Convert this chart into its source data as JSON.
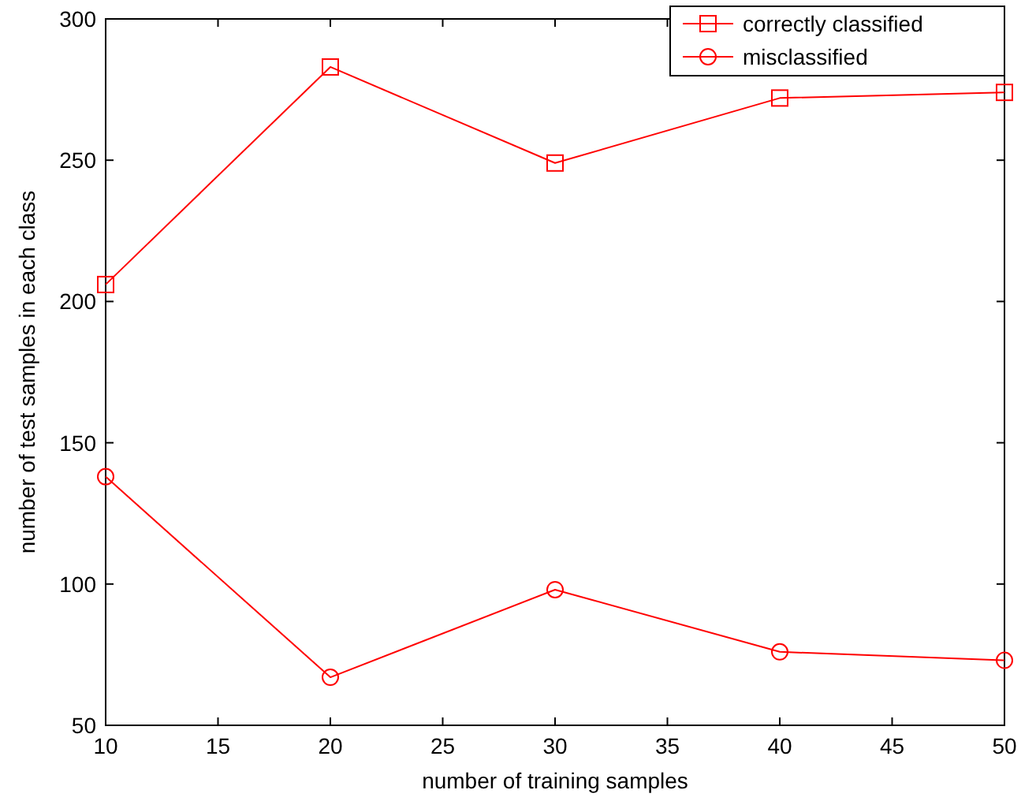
{
  "chart_data": {
    "type": "line",
    "xlabel": "number of training samples",
    "ylabel": "number of test samples in each class",
    "x": [
      10,
      20,
      30,
      40,
      50
    ],
    "series": [
      {
        "name": "correctly classified",
        "color": "#ff0000",
        "marker": "square",
        "values": [
          206,
          283,
          249,
          272,
          274
        ]
      },
      {
        "name": "misclassified",
        "color": "#ff0000",
        "marker": "circle",
        "values": [
          138,
          67,
          98,
          76,
          73
        ]
      }
    ],
    "xlim": [
      10,
      50
    ],
    "xticks": [
      10,
      15,
      20,
      25,
      30,
      35,
      40,
      45,
      50
    ],
    "ylim": [
      50,
      300
    ],
    "yticks": [
      50,
      100,
      150,
      200,
      250,
      300
    ],
    "grid": false,
    "legend": "top right",
    "line_style": "solid"
  }
}
